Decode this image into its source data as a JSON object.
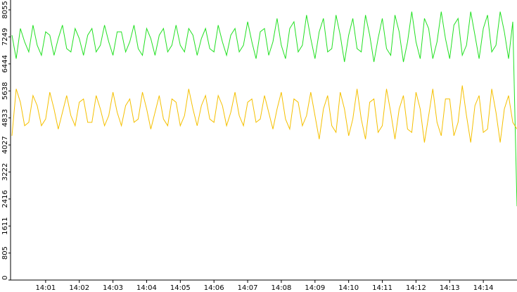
{
  "chart_data": {
    "type": "line",
    "categories": [
      null,
      null,
      null,
      null,
      null,
      null,
      null,
      null,
      "14:01",
      null,
      null,
      null,
      null,
      null,
      null,
      null,
      "14:02",
      null,
      null,
      null,
      null,
      null,
      null,
      null,
      "14:03",
      null,
      null,
      null,
      null,
      null,
      null,
      null,
      "14:04",
      null,
      null,
      null,
      null,
      null,
      null,
      null,
      "14:05",
      null,
      null,
      null,
      null,
      null,
      null,
      null,
      "14:06",
      null,
      null,
      null,
      null,
      null,
      null,
      null,
      "14:07",
      null,
      null,
      null,
      null,
      null,
      null,
      null,
      "14:08",
      null,
      null,
      null,
      null,
      null,
      null,
      null,
      "14:09",
      null,
      null,
      null,
      null,
      null,
      null,
      null,
      "14:10",
      null,
      null,
      null,
      null,
      null,
      null,
      null,
      "14:11",
      null,
      null,
      null,
      null,
      null,
      null,
      null,
      "14:12",
      null,
      null,
      null,
      null,
      null,
      null,
      null,
      "14:13",
      null,
      null,
      null,
      null,
      null,
      null,
      null,
      "14:14",
      null,
      null,
      null,
      null,
      null,
      null,
      null,
      null
    ],
    "series": [
      {
        "color": "#22e022",
        "values": [
          7300,
          6600,
          7500,
          7100,
          6800,
          7600,
          7000,
          6700,
          7400,
          7300,
          6700,
          7200,
          7600,
          6900,
          6800,
          7500,
          7200,
          6700,
          7300,
          7500,
          6800,
          7000,
          7600,
          7100,
          6700,
          7400,
          7400,
          6800,
          7100,
          7600,
          6900,
          6700,
          7500,
          7200,
          6700,
          7300,
          7500,
          6800,
          7000,
          7600,
          7000,
          6800,
          7500,
          7300,
          6700,
          7200,
          7500,
          6900,
          6800,
          7600,
          7100,
          6700,
          7300,
          7500,
          6800,
          7000,
          7700,
          7100,
          6600,
          7400,
          7500,
          6700,
          7100,
          7800,
          7000,
          6600,
          7500,
          7700,
          6800,
          7000,
          7900,
          7200,
          6600,
          7400,
          7800,
          6800,
          6900,
          7900,
          7300,
          6500,
          7300,
          7800,
          6900,
          6800,
          7900,
          7300,
          6500,
          7200,
          7800,
          6900,
          6700,
          7900,
          7400,
          6500,
          7100,
          8000,
          7100,
          6600,
          7800,
          7500,
          6600,
          7100,
          8000,
          7200,
          6600,
          7600,
          7800,
          6700,
          7000,
          8000,
          7300,
          6600,
          7500,
          7900,
          6800,
          7000,
          8000,
          7400,
          6600,
          7700,
          2200
        ]
      },
      {
        "color": "#f5c000",
        "values": [
          4300,
          5700,
          5300,
          4600,
          4700,
          5500,
          5200,
          4600,
          4800,
          5600,
          5100,
          4500,
          5000,
          5500,
          4900,
          4600,
          5300,
          5400,
          4700,
          4700,
          5500,
          5100,
          4600,
          4900,
          5600,
          5000,
          4600,
          5200,
          5400,
          4700,
          4800,
          5600,
          5100,
          4500,
          5000,
          5500,
          4800,
          4600,
          5400,
          5300,
          4600,
          4900,
          5700,
          5100,
          4600,
          5200,
          5500,
          4800,
          4700,
          5500,
          5200,
          4600,
          5000,
          5600,
          4900,
          4600,
          5300,
          5400,
          4700,
          4800,
          5500,
          5000,
          4500,
          5100,
          5600,
          4800,
          4500,
          5400,
          5300,
          4600,
          4900,
          5600,
          4900,
          4200,
          5100,
          5500,
          4600,
          4400,
          5600,
          5100,
          4300,
          4800,
          5700,
          4800,
          4200,
          5300,
          5400,
          4400,
          4600,
          5700,
          5000,
          4200,
          5100,
          5500,
          4500,
          4400,
          5600,
          5100,
          4100,
          4900,
          5700,
          4700,
          4300,
          5400,
          5400,
          4300,
          4700,
          5800,
          4900,
          4100,
          5200,
          5500,
          4400,
          4500,
          5700,
          5000,
          4100,
          5100,
          5500,
          4700,
          4500
        ]
      }
    ],
    "ylim": [
      0,
      8055
    ],
    "yticks": [
      0,
      805,
      1611,
      2416,
      3222,
      4027,
      4833,
      5638,
      6444,
      7249,
      8055
    ]
  }
}
